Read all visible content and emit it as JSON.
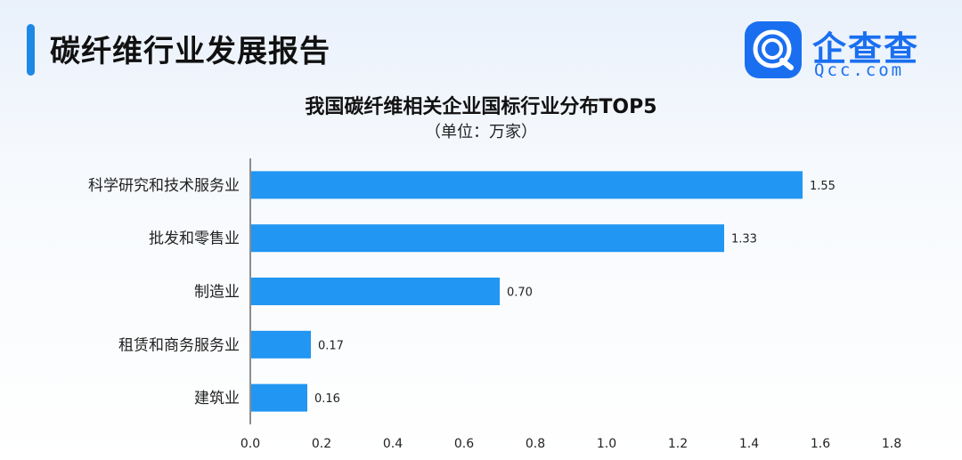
{
  "header": {
    "title": "碳纤维行业发展报告"
  },
  "logo": {
    "name": "企查查",
    "domain": "Qcc.com",
    "icon": "qcc-q-logo-icon",
    "color": "#1a6ff0"
  },
  "colors": {
    "bar": "#2196f3",
    "accent": "#1e88e5"
  },
  "chart_data": {
    "type": "bar",
    "orientation": "horizontal",
    "title": "我国碳纤维相关企业国标行业分布TOP5",
    "subtitle": "（单位：万家）",
    "categories": [
      "科学研究和技术服务业",
      "批发和零售业",
      "制造业",
      "租赁和商务服务业",
      "建筑业"
    ],
    "values": [
      1.55,
      1.33,
      0.7,
      0.17,
      0.16
    ],
    "value_labels": [
      "1.55",
      "1.33",
      "0.70",
      "0.17",
      "0.16"
    ],
    "xlim": [
      0,
      1.8
    ],
    "xticks": [
      "0.0",
      "0.2",
      "0.4",
      "0.6",
      "0.8",
      "1.0",
      "1.2",
      "1.4",
      "1.6",
      "1.8"
    ],
    "xlabel": "",
    "ylabel": "",
    "grid": false
  }
}
